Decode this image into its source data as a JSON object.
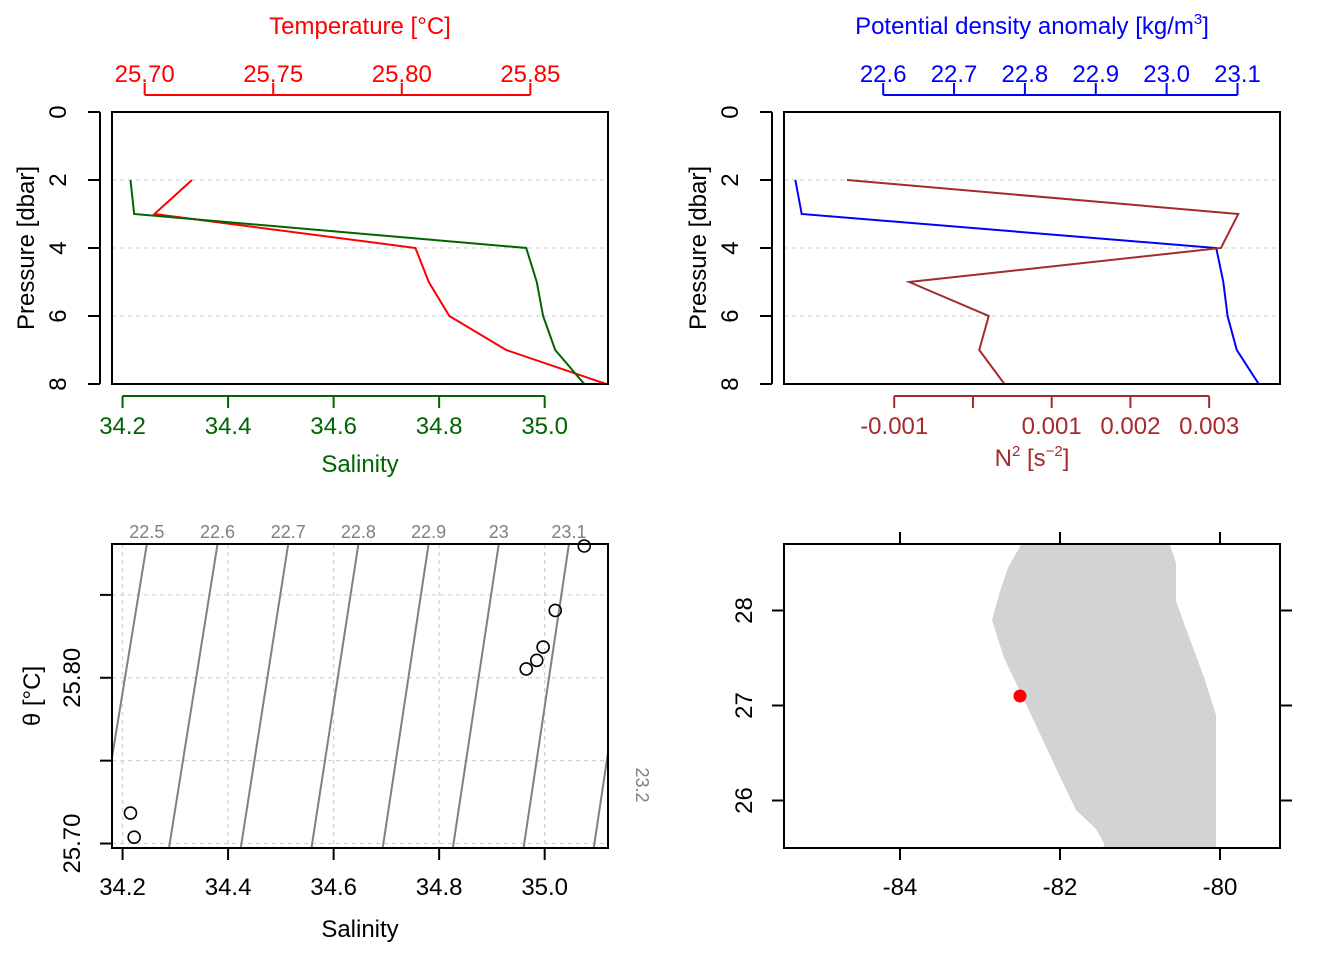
{
  "chart_data": [
    {
      "panel": "profile-temperature-salinity",
      "type": "line",
      "y": {
        "label": "Pressure [dbar]",
        "lim": [
          8.0,
          0.0
        ],
        "ticks": [
          0,
          2,
          4,
          6,
          8
        ],
        "tick_labels": [
          "0",
          "2",
          "4",
          "6",
          "8"
        ],
        "grid": true
      },
      "top_axis": {
        "label": "Temperature [°C]",
        "color": "#ff0000",
        "lim": [
          25.6873,
          25.8802
        ],
        "ticks": [
          25.7,
          25.75,
          25.8,
          25.85
        ],
        "tick_labels": [
          "25.70",
          "25.75",
          "25.80",
          "25.85"
        ]
      },
      "bottom_axis": {
        "label": "Salinity",
        "color": "#006400",
        "lim": [
          34.18,
          35.12
        ],
        "ticks": [
          34.2,
          34.4,
          34.6,
          34.8,
          35.0
        ],
        "tick_labels": [
          "34.2",
          "34.4",
          "34.6",
          "34.8",
          "35.0"
        ]
      },
      "series": [
        {
          "color": "#ff0000",
          "axis": "top",
          "points": [
            [
              25.7184,
              2
            ],
            [
              25.7038,
              3
            ],
            [
              25.8053,
              4
            ],
            [
              25.8105,
              5
            ],
            [
              25.8185,
              6
            ],
            [
              25.8406,
              7
            ],
            [
              25.8795,
              8
            ]
          ]
        },
        {
          "color": "#006400",
          "axis": "bottom",
          "points": [
            [
              34.215,
              2
            ],
            [
              34.222,
              3
            ],
            [
              34.965,
              4
            ],
            [
              34.985,
              5
            ],
            [
              34.997,
              6
            ],
            [
              35.02,
              7
            ],
            [
              35.075,
              8
            ]
          ]
        }
      ]
    },
    {
      "panel": "profile-density-n2",
      "type": "line",
      "y": {
        "label": "Pressure [dbar]",
        "lim": [
          8.0,
          0.0
        ],
        "ticks": [
          0,
          2,
          4,
          6,
          8
        ],
        "tick_labels": [
          "0",
          "2",
          "4",
          "6",
          "8"
        ],
        "grid": true
      },
      "top_axis": {
        "label_parts": [
          "Potential density anomaly [kg/m",
          "3",
          "]"
        ],
        "color": "#0000ff",
        "lim": [
          22.46,
          23.16
        ],
        "ticks": [
          22.6,
          22.7,
          22.8,
          22.9,
          23.0,
          23.1
        ],
        "tick_labels": [
          "22.6",
          "22.7",
          "22.8",
          "22.9",
          "23.0",
          "23.1"
        ]
      },
      "bottom_axis": {
        "label_parts": [
          "N",
          "2",
          " [s",
          "−2",
          "]"
        ],
        "color": "#a52a2a",
        "lim": [
          -0.0024,
          0.0039
        ],
        "ticks": [
          -0.001,
          0.0,
          0.001,
          0.002,
          0.003
        ],
        "tick_labels": [
          "-0.001",
          "",
          "0.001",
          "0.002",
          "0.003"
        ]
      },
      "series": [
        {
          "color": "#0000ff",
          "axis": "top",
          "points": [
            [
              22.476,
              2
            ],
            [
              22.485,
              3
            ],
            [
              23.07,
              4
            ],
            [
              23.08,
              5
            ],
            [
              23.086,
              6
            ],
            [
              23.099,
              7
            ],
            [
              23.13,
              8
            ]
          ]
        },
        {
          "color": "#a52a2a",
          "axis": "bottom",
          "points": [
            [
              -0.0016,
              2
            ],
            [
              0.00337,
              3
            ],
            [
              0.00315,
              4
            ],
            [
              -0.00081,
              5
            ],
            [
              0.0002,
              6
            ],
            [
              8e-05,
              7
            ],
            [
              0.0004,
              8
            ]
          ]
        }
      ]
    },
    {
      "panel": "ts-diagram",
      "type": "scatter",
      "x": {
        "label": "Salinity",
        "lim": [
          34.18,
          35.12
        ],
        "ticks": [
          34.2,
          34.4,
          34.6,
          34.8,
          35.0
        ],
        "tick_labels": [
          "34.2",
          "34.4",
          "34.6",
          "34.8",
          "35.0"
        ]
      },
      "y": {
        "label": "θ [°C]",
        "lim": [
          25.6973,
          25.8807
        ],
        "ticks": [
          25.7,
          25.75,
          25.8,
          25.85
        ],
        "tick_labels": [
          "25.70",
          "",
          "25.80",
          ""
        ]
      },
      "grid": true,
      "points": [
        [
          34.215,
          25.7184
        ],
        [
          34.222,
          25.7038
        ],
        [
          34.965,
          25.8053
        ],
        [
          34.985,
          25.8105
        ],
        [
          34.997,
          25.8185
        ],
        [
          35.02,
          25.8406
        ],
        [
          35.075,
          25.8795
        ]
      ],
      "isopycnals": [
        {
          "label": "22.5",
          "s_at_top": 34.246,
          "s_at_bottom": 34.152
        },
        {
          "label": "22.6",
          "s_at_top": 34.38,
          "s_at_bottom": 34.288
        },
        {
          "label": "22.7",
          "s_at_top": 34.514,
          "s_at_bottom": 34.424
        },
        {
          "label": "22.8",
          "s_at_top": 34.647,
          "s_at_bottom": 34.558
        },
        {
          "label": "22.9",
          "s_at_top": 34.78,
          "s_at_bottom": 34.693
        },
        {
          "label": "23",
          "s_at_top": 34.913,
          "s_at_bottom": 34.826
        },
        {
          "label": "23.1",
          "s_at_top": 35.046,
          "s_at_bottom": 34.96
        },
        {
          "label": "23.2",
          "s_at_top": 35.179,
          "s_at_bottom": 35.093
        }
      ]
    },
    {
      "panel": "station-map",
      "type": "map",
      "x": {
        "lim": [
          -85.45,
          -79.25
        ],
        "ticks": [
          -84,
          -82,
          -80
        ],
        "tick_labels": [
          "-84",
          "-82",
          "-80"
        ]
      },
      "y": {
        "lim": [
          25.5,
          28.7
        ],
        "ticks": [
          26,
          27,
          28
        ],
        "tick_labels": [
          "26",
          "27",
          "28"
        ]
      },
      "land_color": "#d3d3d3",
      "coastline": [
        [
          -82.45,
          28.75
        ],
        [
          -82.65,
          28.45
        ],
        [
          -82.75,
          28.2
        ],
        [
          -82.85,
          27.9
        ],
        [
          -82.7,
          27.5
        ],
        [
          -82.5,
          27.15
        ],
        [
          -82.25,
          26.7
        ],
        [
          -82.0,
          26.25
        ],
        [
          -81.8,
          25.9
        ],
        [
          -81.55,
          25.7
        ],
        [
          -81.45,
          25.55
        ],
        [
          -81.45,
          25.45
        ],
        [
          -80.05,
          25.45
        ],
        [
          -80.05,
          25.9
        ],
        [
          -80.05,
          26.4
        ],
        [
          -80.05,
          26.9
        ],
        [
          -80.2,
          27.3
        ],
        [
          -80.4,
          27.75
        ],
        [
          -80.55,
          28.1
        ],
        [
          -80.55,
          28.5
        ],
        [
          -80.65,
          28.75
        ]
      ],
      "station": {
        "lon": -82.5,
        "lat": 27.1,
        "color": "#ff0000"
      }
    }
  ]
}
